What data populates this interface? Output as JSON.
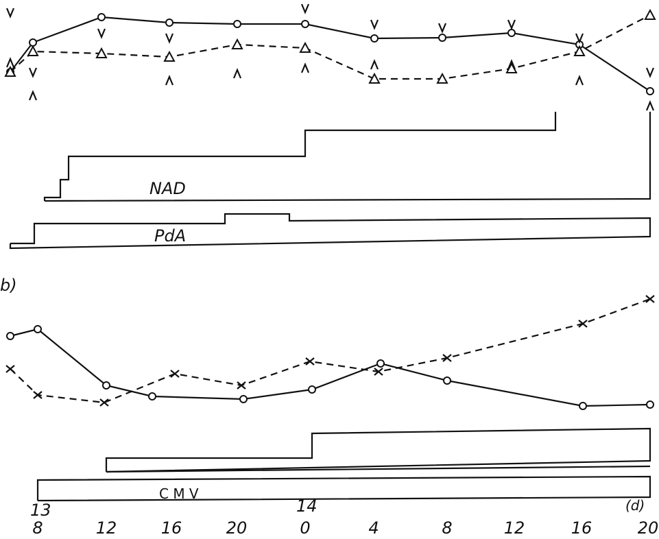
{
  "labels": {
    "panel": "b)",
    "nad": "NAD",
    "pda": "PdA",
    "cmv": "C M V"
  },
  "x_axis": {
    "days": [
      "13",
      "14"
    ],
    "hours": [
      "8",
      "12",
      "16",
      "20",
      "0",
      "4",
      "8",
      "12",
      "16",
      "20"
    ],
    "unit": "(d)"
  }
}
